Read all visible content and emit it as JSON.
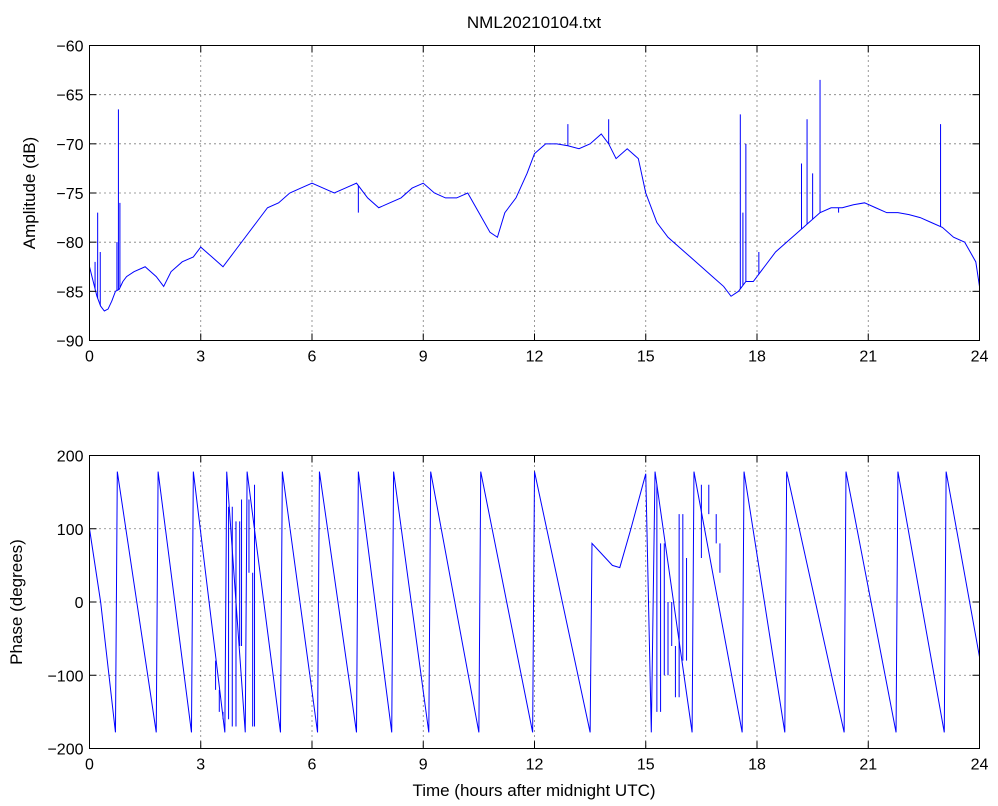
{
  "chart_data": {
    "title": "NML20210104.txt",
    "xlabel": "Time (hours after midnight UTC)",
    "colors": {
      "trace": "#0000ff",
      "grid": "#000000"
    },
    "panels": [
      {
        "type": "line",
        "ylabel": "Amplitude (dB)",
        "xlim": [
          0,
          24
        ],
        "ylim": [
          -90,
          -60
        ],
        "xticks": [
          "0",
          "3",
          "6",
          "9",
          "12",
          "15",
          "18",
          "21",
          "24"
        ],
        "yticks": [
          "-90",
          "-85",
          "-80",
          "-75",
          "-70",
          "-65",
          "-60"
        ],
        "grid": true,
        "series": [
          {
            "x": [
              0,
              0.1,
              0.2,
              0.3,
              0.4,
              0.5,
              0.6,
              0.7,
              0.8,
              0.9,
              1.0,
              1.2,
              1.5,
              1.8,
              2.0,
              2.2,
              2.5,
              2.8,
              3.0,
              3.3,
              3.6,
              3.9,
              4.2,
              4.5,
              4.8,
              5.1,
              5.4,
              5.7,
              6.0,
              6.3,
              6.6,
              6.9,
              7.2,
              7.5,
              7.8,
              8.1,
              8.4,
              8.7,
              9.0,
              9.3,
              9.6,
              9.9,
              10.2,
              10.5,
              10.8,
              11.0,
              11.2,
              11.5,
              11.8,
              12.0,
              12.3,
              12.6,
              12.9,
              13.2,
              13.5,
              13.8,
              14.0,
              14.2,
              14.5,
              14.8,
              15.0,
              15.3,
              15.6,
              15.9,
              16.2,
              16.5,
              16.8,
              17.1,
              17.3,
              17.5,
              17.7,
              17.9,
              18.2,
              18.5,
              18.8,
              19.1,
              19.4,
              19.7,
              20.0,
              20.3,
              20.6,
              20.9,
              21.2,
              21.5,
              21.8,
              22.1,
              22.4,
              22.7,
              23.0,
              23.3,
              23.6,
              23.9,
              24.0
            ],
            "y": [
              -82.5,
              -84,
              -85.5,
              -86.5,
              -87,
              -86.8,
              -86,
              -85,
              -84.8,
              -84,
              -83.5,
              -83,
              -82.5,
              -83.5,
              -84.5,
              -83,
              -82,
              -81.5,
              -80.5,
              -81.5,
              -82.5,
              -81,
              -79.5,
              -78,
              -76.5,
              -76,
              -75,
              -74.5,
              -74,
              -74.5,
              -75,
              -74.5,
              -74,
              -75.5,
              -76.5,
              -76,
              -75.5,
              -74.5,
              -74,
              -75,
              -75.5,
              -75.5,
              -75,
              -77,
              -79,
              -79.5,
              -77,
              -75.5,
              -73,
              -71,
              -70,
              -70,
              -70.2,
              -70.5,
              -70,
              -69,
              -70,
              -71.5,
              -70.5,
              -71.5,
              -75,
              -78,
              -79.5,
              -80.5,
              -81.5,
              -82.5,
              -83.5,
              -84.5,
              -85.5,
              -85,
              -84,
              -84,
              -82.5,
              -81,
              -80,
              -79,
              -78,
              -77,
              -76.5,
              -76.5,
              -76.2,
              -76,
              -76.5,
              -77,
              -77,
              -77.2,
              -77.5,
              -78,
              -78.5,
              -79.5,
              -80,
              -82,
              -84.5
            ]
          },
          {
            "x": [
              0.15,
              0.22,
              0.29,
              0.74,
              0.78,
              0.82,
              7.25,
              12.9,
              14.0,
              17.55,
              17.62,
              17.7,
              18.05,
              19.2,
              19.35,
              19.5,
              19.7,
              20.2,
              22.95
            ],
            "y": [
              -82,
              -77,
              -81,
              -80,
              -66.5,
              -76,
              -77,
              -68,
              -67.5,
              -67,
              -77,
              -70,
              -81,
              -72,
              -67.5,
              -73,
              -63.5,
              -77,
              -68
            ]
          }
        ]
      },
      {
        "type": "line",
        "ylabel": "Phase (degrees)",
        "xlim": [
          0,
          24
        ],
        "ylim": [
          -200,
          200
        ],
        "xticks": [
          "0",
          "3",
          "6",
          "9",
          "12",
          "15",
          "18",
          "21",
          "24"
        ],
        "yticks": [
          "-200",
          "-100",
          "0",
          "100",
          "200"
        ],
        "grid": true,
        "series": [
          {
            "x": [
              0,
              0.3,
              0.7,
              0.75,
              1.8,
              1.85,
              2.75,
              2.8,
              3.65,
              3.7,
              4.2,
              4.25,
              5.15,
              5.2,
              6.15,
              6.2,
              7.2,
              7.25,
              8.15,
              8.2,
              9.15,
              9.2,
              10.5,
              10.55,
              11.95,
              12.0,
              13.5,
              13.55,
              14.1,
              14.3,
              14.6,
              15.0,
              15.15,
              15.25,
              16.25,
              16.3,
              17.6,
              17.65,
              18.75,
              18.8,
              20.35,
              20.4,
              21.75,
              21.8,
              23.05,
              23.1,
              24.0
            ],
            "y": [
              100,
              0,
              -178,
              178,
              -178,
              178,
              -178,
              178,
              -178,
              178,
              -178,
              178,
              -178,
              178,
              -178,
              178,
              -178,
              178,
              -178,
              178,
              -178,
              178,
              -178,
              178,
              -178,
              178,
              -178,
              80,
              50,
              47,
              100,
              175,
              -178,
              178,
              -178,
              178,
              -178,
              178,
              -178,
              178,
              -178,
              178,
              -178,
              178,
              -178,
              178,
              -75
            ]
          },
          {
            "x": [
              3.3,
              3.4,
              3.5,
              3.6,
              3.75,
              3.85,
              3.95,
              4.05,
              4.1,
              4.3,
              4.4,
              4.45,
              15.3,
              15.4,
              15.5,
              15.6,
              15.7,
              15.8,
              15.9,
              16.0,
              16.1,
              16.5,
              16.7,
              16.9,
              17.0
            ],
            "y": [
              -80,
              -120,
              -150,
              -160,
              130,
              -170,
              110,
              -60,
              140,
              40,
              -170,
              160,
              -150,
              80,
              -100,
              0,
              -60,
              -130,
              120,
              -80,
              60,
              160,
              120,
              80,
              40
            ]
          }
        ]
      }
    ]
  }
}
